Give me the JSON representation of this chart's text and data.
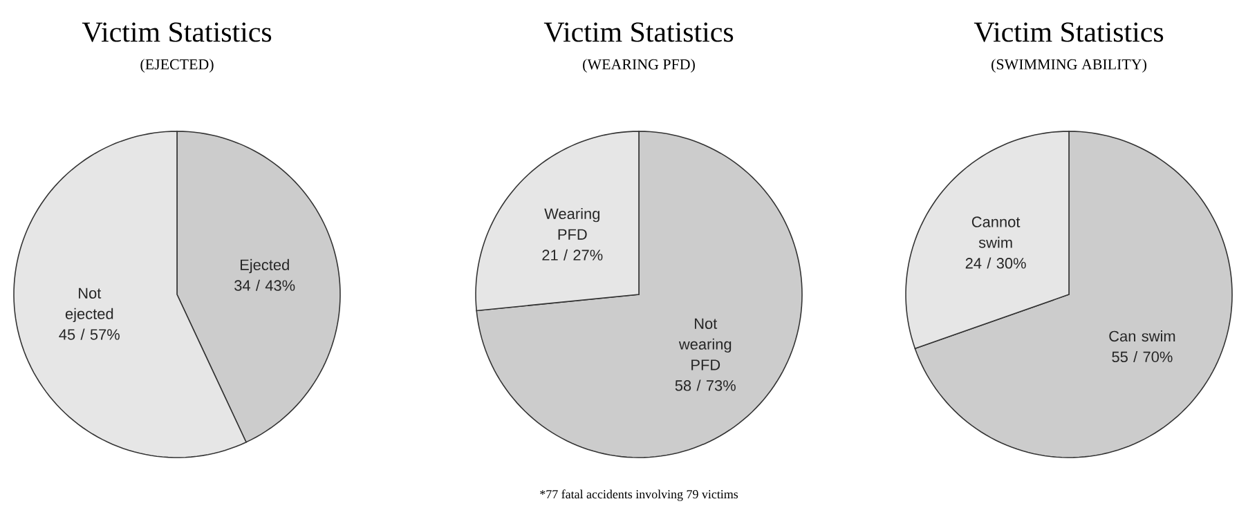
{
  "chart_data": [
    {
      "type": "pie",
      "title": "Victim Statistics",
      "subtitle": "(EJECTED)",
      "categories": [
        "Ejected",
        "Not ejected"
      ],
      "values": [
        34,
        45
      ],
      "value_labels": [
        "34 / 43%",
        "45 / 57%"
      ],
      "colors": [
        "#cccccc",
        "#e6e6e6"
      ]
    },
    {
      "type": "pie",
      "title": "Victim Statistics",
      "subtitle": "(WEARING PFD)",
      "categories": [
        "Not wearing PFD",
        "Wearing PFD"
      ],
      "values": [
        58,
        21
      ],
      "value_labels": [
        "58 / 73%",
        "21 / 27%"
      ],
      "colors": [
        "#cccccc",
        "#e6e6e6"
      ],
      "annotations": [
        "*77 fatal accidents involving 79 victims"
      ]
    },
    {
      "type": "pie",
      "title": "Victim Statistics",
      "subtitle": "(SWIMMING ABILITY)",
      "categories": [
        "Can swim",
        "Cannot swim"
      ],
      "values": [
        55,
        24
      ],
      "value_labels": [
        "55 / 70%",
        "24 / 30%"
      ],
      "colors": [
        "#cccccc",
        "#e6e6e6"
      ]
    }
  ]
}
